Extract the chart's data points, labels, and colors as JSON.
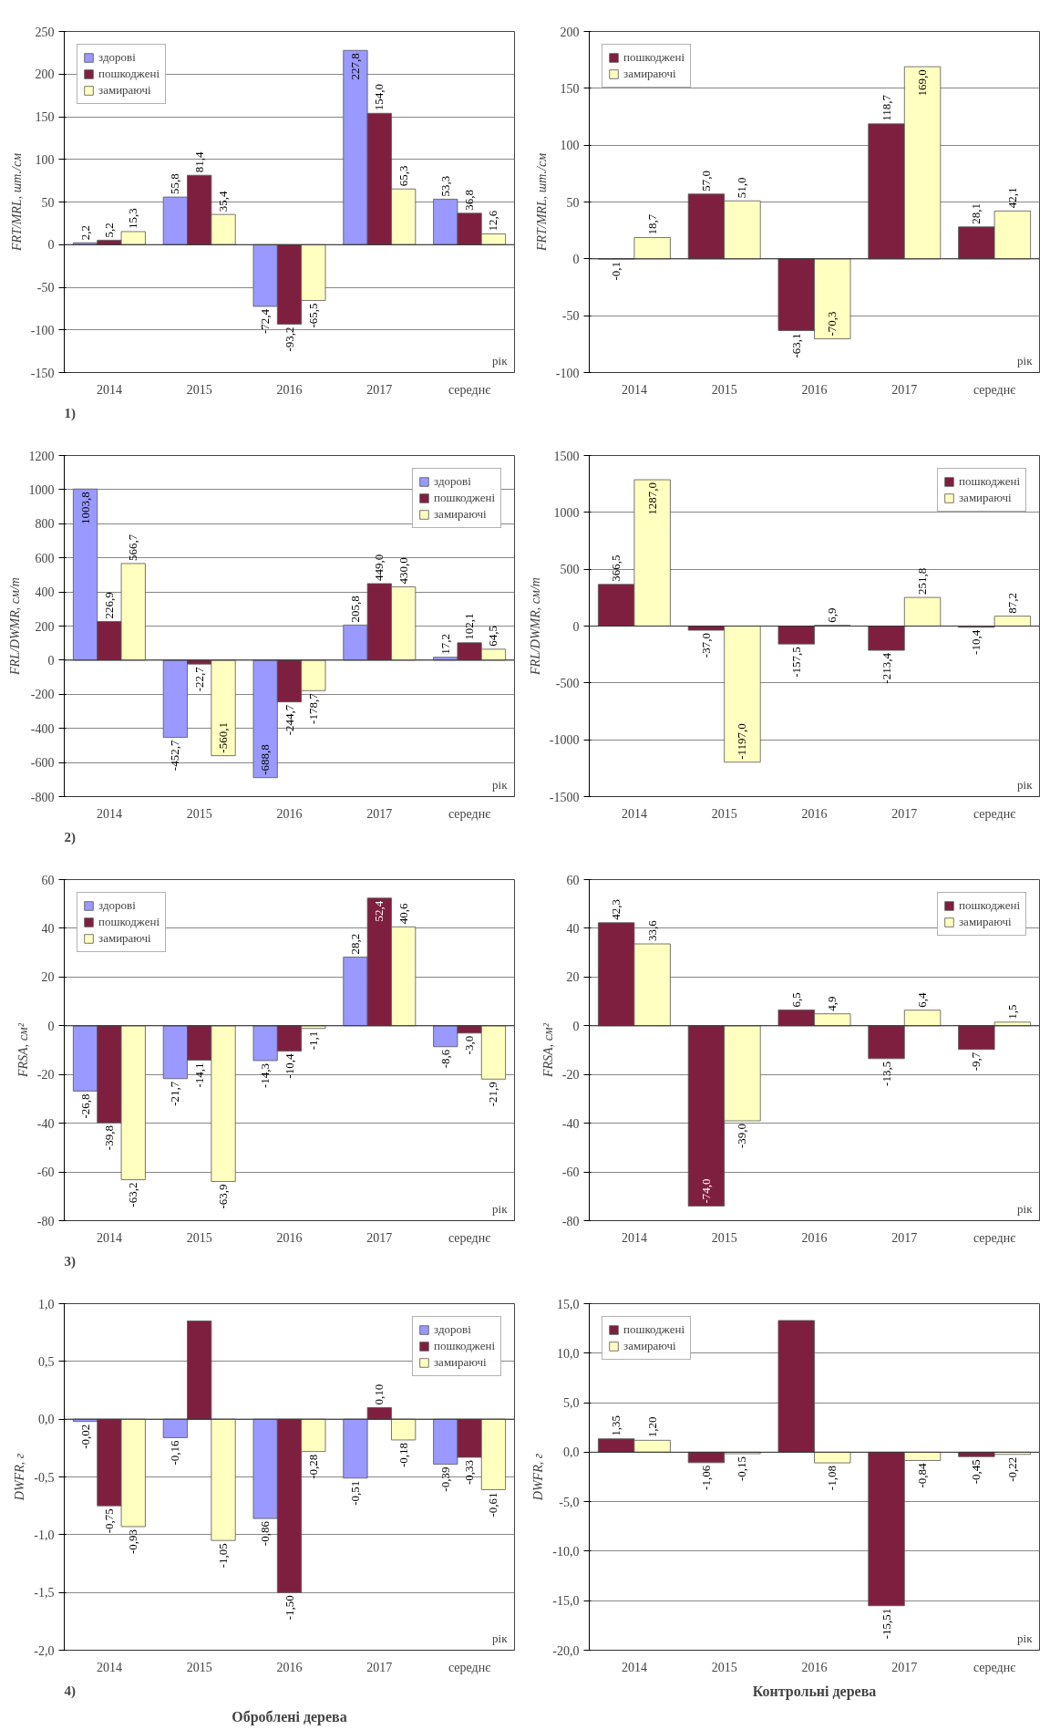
{
  "chart_data": [
    {
      "type": "bar",
      "title": "1)",
      "xlabel": "рік",
      "ylabel": "FRT/MRL, шт./см",
      "categories": [
        "2014",
        "2015",
        "2016",
        "2017",
        "середнє"
      ],
      "ylim": [
        -150,
        250
      ],
      "yticks": [
        -150,
        -100,
        -50,
        0,
        50,
        100,
        150,
        200,
        250
      ],
      "grid": "y",
      "legend": "top left",
      "series": [
        {
          "name": "здорові",
          "color": "#9999ff",
          "values": [
            2.2,
            55.8,
            -72.4,
            227.8,
            53.3
          ],
          "value_labels": [
            "2,2",
            "55,8",
            "-72,4",
            "227,8",
            "53,3"
          ]
        },
        {
          "name": "пошкоджені",
          "color": "#7f1f3f",
          "values": [
            5.2,
            81.4,
            -93.2,
            154.0,
            36.8
          ],
          "value_labels": [
            "5,2",
            "81,4",
            "-93,2",
            "154,0",
            "36,8"
          ]
        },
        {
          "name": "замираючі",
          "color": "#ffffc0",
          "values": [
            15.3,
            35.4,
            -65.5,
            65.3,
            12.6
          ],
          "value_labels": [
            "15,3",
            "35,4",
            "-65,5",
            "65,3",
            "12,6"
          ]
        }
      ]
    },
    {
      "type": "bar",
      "ylabel": "FRT/MRL, шт./см",
      "xlabel": "рік",
      "categories": [
        "2014",
        "2015",
        "2016",
        "2017",
        "середнє"
      ],
      "ylim": [
        -100,
        200
      ],
      "yticks": [
        -100,
        -50,
        0,
        50,
        100,
        150,
        200
      ],
      "grid": "y",
      "legend": "top left",
      "series": [
        {
          "name": "пошкоджені",
          "color": "#7f1f3f",
          "values": [
            -0.1,
            57.0,
            -63.1,
            118.7,
            28.1
          ],
          "value_labels": [
            "-0,1",
            "57,0",
            "-63,1",
            "118,7",
            "28,1"
          ]
        },
        {
          "name": "замираючі",
          "color": "#ffffc0",
          "values": [
            18.7,
            51.0,
            -70.3,
            169.0,
            42.1
          ],
          "value_labels": [
            "18,7",
            "51,0",
            "-70,3",
            "169,0",
            "42,1"
          ]
        }
      ]
    },
    {
      "type": "bar",
      "title": "2)",
      "xlabel": "рік",
      "ylabel": "FRL/DWMR, см/т",
      "categories": [
        "2014",
        "2015",
        "2016",
        "2017",
        "середнє"
      ],
      "ylim": [
        -800,
        1200
      ],
      "yticks": [
        -800,
        -600,
        -400,
        -200,
        0,
        200,
        400,
        600,
        800,
        1000,
        1200
      ],
      "grid": "y",
      "legend": "top right",
      "series": [
        {
          "name": "здорові",
          "color": "#9999ff",
          "values": [
            1003.8,
            -452.7,
            -688.8,
            205.8,
            17.2
          ],
          "value_labels": [
            "1003,8",
            "-452,7",
            "-688,8",
            "205,8",
            "17,2"
          ]
        },
        {
          "name": "пошкоджені",
          "color": "#7f1f3f",
          "values": [
            226.9,
            -22.7,
            -244.7,
            449.0,
            102.1
          ],
          "value_labels": [
            "226,9",
            "-22,7",
            "-244,7",
            "449,0",
            "102,1"
          ]
        },
        {
          "name": "замираючі",
          "color": "#ffffc0",
          "values": [
            566.7,
            -560.1,
            -178.7,
            430.0,
            64.5
          ],
          "value_labels": [
            "566,7",
            "-560,1",
            "-178,7",
            "430,0",
            "64,5"
          ]
        }
      ]
    },
    {
      "type": "bar",
      "ylabel": "FRL/DWMR, см/т",
      "xlabel": "рік",
      "categories": [
        "2014",
        "2015",
        "2016",
        "2017",
        "середнє"
      ],
      "ylim": [
        -1500,
        1500
      ],
      "yticks": [
        -1500,
        -1000,
        -500,
        0,
        500,
        1000,
        1500
      ],
      "grid": "y",
      "legend": "top right",
      "series": [
        {
          "name": "пошкоджені",
          "color": "#7f1f3f",
          "values": [
            366.5,
            -37.0,
            -157.5,
            -213.4,
            -10.4
          ],
          "value_labels": [
            "366,5",
            "-37,0",
            "-157,5",
            "-213,4",
            "-10,4"
          ]
        },
        {
          "name": "замираючі",
          "color": "#ffffc0",
          "values": [
            1287.0,
            -1197.0,
            6.9,
            251.8,
            87.2
          ],
          "value_labels": [
            "1287,0",
            "-1197,0",
            "6,9",
            "251,8",
            "87,2"
          ]
        }
      ]
    },
    {
      "type": "bar",
      "title": "3)",
      "xlabel": "рік",
      "ylabel": "FRSA, см²",
      "categories": [
        "2014",
        "2015",
        "2016",
        "2017",
        "середнє"
      ],
      "ylim": [
        -80,
        60
      ],
      "yticks": [
        -80,
        -60,
        -40,
        -20,
        0,
        20,
        40,
        60
      ],
      "grid": "y",
      "legend": "top left",
      "series": [
        {
          "name": "здорові",
          "color": "#9999ff",
          "values": [
            -26.8,
            -21.7,
            -14.3,
            28.2,
            -8.6
          ],
          "value_labels": [
            "-26,8",
            "-21,7",
            "-14,3",
            "28,2",
            "-8,6"
          ]
        },
        {
          "name": "пошкоджені",
          "color": "#7f1f3f",
          "values": [
            -39.8,
            -14.1,
            -10.4,
            52.4,
            -3.0
          ],
          "value_labels": [
            "-39,8",
            "-14,1",
            "-10,4",
            "52,4",
            "-3,0"
          ]
        },
        {
          "name": "замираючі",
          "color": "#ffffc0",
          "values": [
            -63.2,
            -63.9,
            -1.1,
            40.6,
            -21.9
          ],
          "value_labels": [
            "-63,2",
            "-63,9",
            "-1,1",
            "40,6",
            "-21,9"
          ]
        }
      ]
    },
    {
      "type": "bar",
      "ylabel": "FRSA, см²",
      "xlabel": "рік",
      "categories": [
        "2014",
        "2015",
        "2016",
        "2017",
        "середнє"
      ],
      "ylim": [
        -80,
        60
      ],
      "yticks": [
        -80,
        -60,
        -40,
        -20,
        0,
        20,
        40,
        60
      ],
      "grid": "y",
      "legend": "top right",
      "series": [
        {
          "name": "пошкоджені",
          "color": "#7f1f3f",
          "values": [
            42.3,
            -74.0,
            6.5,
            -13.5,
            -9.7
          ],
          "value_labels": [
            "42,3",
            "-74,0",
            "6,5",
            "-13,5",
            "-9,7"
          ]
        },
        {
          "name": "замираючі",
          "color": "#ffffc0",
          "values": [
            33.6,
            -39.0,
            4.9,
            6.4,
            1.5
          ],
          "value_labels": [
            "33,6",
            "-39,0",
            "4,9",
            "6,4",
            "1,5"
          ]
        }
      ]
    },
    {
      "type": "bar",
      "title": "4)",
      "xlabel": "рік",
      "ylabel": "DWFR, г",
      "annotations": [
        "Оброблені дерева"
      ],
      "categories": [
        "2014",
        "2015",
        "2016",
        "2017",
        "середнє"
      ],
      "ylim": [
        -2,
        1
      ],
      "yticks": [
        {
          "value": -2,
          "label": "-2,0"
        },
        {
          "value": -1.5,
          "label": "-1,5"
        },
        {
          "value": -1,
          "label": "-1,0"
        },
        {
          "value": -0.5,
          "label": "-0,5"
        },
        {
          "value": 0,
          "label": "0,0"
        },
        {
          "value": 0.5,
          "label": "0,5"
        },
        {
          "value": 1,
          "label": "1,0"
        }
      ],
      "grid": "y",
      "legend": "top right",
      "series": [
        {
          "name": "здорові",
          "color": "#9999ff",
          "values": [
            -0.02,
            -0.16,
            -0.86,
            -0.51,
            -0.39
          ],
          "value_labels": [
            "-0,02",
            "-0,16",
            "-0,86",
            "-0,51",
            "-0,39"
          ]
        },
        {
          "name": "пошкоджені",
          "color": "#7f1f3f",
          "values": [
            -0.75,
            0.85,
            -1.5,
            0.1,
            -0.33
          ],
          "value_labels": [
            "-0,75",
            null,
            "-1,50",
            "0,10",
            "-0,33"
          ]
        },
        {
          "name": "замираючі",
          "color": "#ffffc0",
          "values": [
            -0.93,
            -1.05,
            -0.28,
            -0.18,
            -0.61
          ],
          "value_labels": [
            "-0,93",
            "-1,05",
            "-0,28",
            "-0,18",
            "-0,61"
          ]
        }
      ]
    },
    {
      "type": "bar",
      "ylabel": "DWFR, г",
      "xlabel": "рік",
      "annotations": [
        "Контрольні дерева"
      ],
      "categories": [
        "2014",
        "2015",
        "2016",
        "2017",
        "середнє"
      ],
      "ylim": [
        -20,
        15
      ],
      "yticks": [
        {
          "value": -20,
          "label": "-20,0"
        },
        {
          "value": -15,
          "label": "-15,0"
        },
        {
          "value": -10,
          "label": "-10,0"
        },
        {
          "value": -5,
          "label": "-5,0"
        },
        {
          "value": 0,
          "label": "0,0"
        },
        {
          "value": 5,
          "label": "5,0"
        },
        {
          "value": 10,
          "label": "10,0"
        },
        {
          "value": 15,
          "label": "15,0"
        }
      ],
      "grid": "y",
      "legend": "top left",
      "series": [
        {
          "name": "пошкоджені",
          "color": "#7f1f3f",
          "values": [
            1.35,
            -1.06,
            13.3,
            -15.51,
            -0.45
          ],
          "value_labels": [
            "1,35",
            "-1,06",
            null,
            "-15,51",
            "-0,45"
          ]
        },
        {
          "name": "замираючі",
          "color": "#ffffc0",
          "values": [
            1.2,
            -0.15,
            -1.08,
            -0.84,
            -0.22
          ],
          "value_labels": [
            "1,20",
            "-0,15",
            "-1,08",
            "-0,84",
            "-0,22"
          ]
        }
      ]
    }
  ]
}
